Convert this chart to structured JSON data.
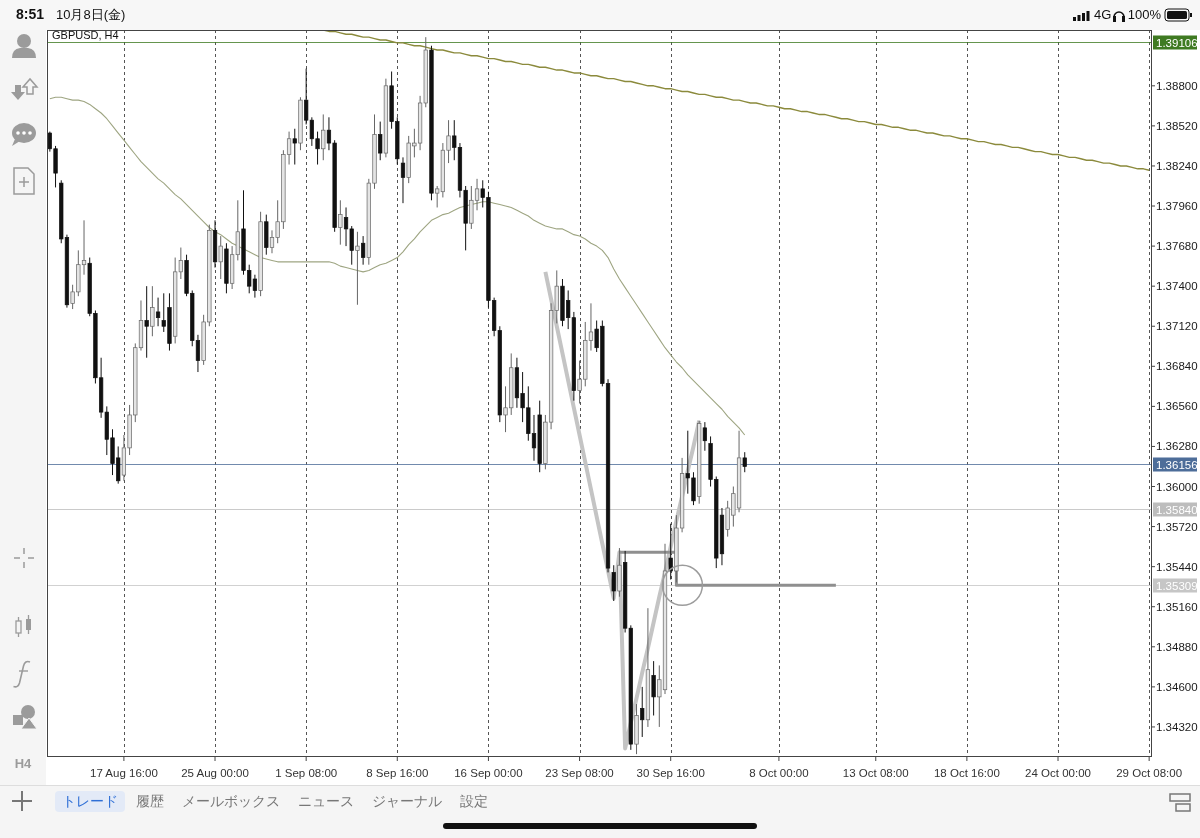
{
  "chart_data": {
    "type": "candlestick",
    "title": "GBPUSD, H4",
    "categories": [
      null,
      null,
      null,
      null,
      null,
      null,
      null,
      null,
      null,
      null,
      null,
      null,
      null,
      "17 Aug 16:00",
      null,
      null,
      null,
      null,
      null,
      null,
      null,
      null,
      null,
      null,
      null,
      null,
      null,
      null,
      null,
      "25 Aug 00:00",
      null,
      null,
      null,
      null,
      null,
      null,
      null,
      null,
      null,
      null,
      null,
      null,
      null,
      null,
      null,
      "1 Sep 08:00",
      null,
      null,
      null,
      null,
      null,
      null,
      null,
      null,
      null,
      null,
      null,
      null,
      null,
      null,
      null,
      "8 Sep 16:00",
      null,
      null,
      null,
      null,
      null,
      null,
      null,
      null,
      null,
      null,
      null,
      null,
      null,
      null,
      null,
      "16 Sep 00:00",
      null,
      null,
      null,
      null,
      null,
      null,
      null,
      null,
      null,
      null,
      null,
      null,
      null,
      null,
      null,
      "23 Sep 08:00",
      null,
      null,
      null,
      null,
      null,
      null,
      null,
      null,
      null,
      null,
      null,
      null,
      null,
      null,
      null,
      "30 Sep 16:00",
      null,
      null,
      null,
      null,
      null,
      null,
      null,
      null,
      null,
      null,
      null,
      null,
      null,
      null,
      null,
      null,
      null,
      null,
      "8 Oct 00:00",
      null,
      null,
      null,
      null,
      null,
      null,
      null,
      null,
      null,
      null,
      null,
      null,
      null,
      null,
      null,
      null,
      "13 Oct 08:00",
      null,
      null,
      null,
      null,
      null,
      null,
      null,
      null,
      null,
      null,
      null,
      null,
      null,
      null,
      null,
      "18 Oct 16:00",
      null,
      null,
      null,
      null,
      null,
      null,
      null,
      null,
      null,
      null,
      null,
      null,
      null,
      null,
      null,
      "24 Oct 00:00",
      null,
      null,
      null,
      null,
      null,
      null,
      null,
      null,
      null,
      null,
      null,
      null,
      null,
      null,
      null,
      "29 Oct 08:00"
    ],
    "ohlc": [
      [
        1.3847,
        1.3848,
        1.3834,
        1.3836
      ],
      [
        1.3836,
        1.3838,
        1.3809,
        1.3819
      ],
      [
        1.3812,
        1.3814,
        1.377,
        1.3773
      ],
      [
        1.3774,
        1.3776,
        1.3725,
        1.3727
      ],
      [
        1.3728,
        1.3741,
        1.3724,
        1.3736
      ],
      [
        1.3736,
        1.3765,
        1.3733,
        1.3755
      ],
      [
        1.3755,
        1.3786,
        1.3748,
        1.3758
      ],
      [
        1.3756,
        1.376,
        1.3719,
        1.3721
      ],
      [
        1.3721,
        1.3723,
        1.3672,
        1.3676
      ],
      [
        1.3676,
        1.369,
        1.3648,
        1.3652
      ],
      [
        1.3652,
        1.3656,
        1.3622,
        1.3633
      ],
      [
        1.3634,
        1.364,
        1.3608,
        1.3616
      ],
      [
        1.362,
        1.3628,
        1.3602,
        1.3604
      ],
      [
        1.3608,
        1.3636,
        1.3604,
        1.3627
      ],
      [
        1.3627,
        1.3657,
        1.3622,
        1.365
      ],
      [
        1.365,
        1.37,
        1.3645,
        1.3697
      ],
      [
        1.3697,
        1.373,
        1.3695,
        1.3716
      ],
      [
        1.3716,
        1.374,
        1.369,
        1.3712
      ],
      [
        1.3712,
        1.374,
        1.3705,
        1.3725
      ],
      [
        1.3722,
        1.3732,
        1.3712,
        1.3718
      ],
      [
        1.3716,
        1.3735,
        1.3708,
        1.3712
      ],
      [
        1.3725,
        1.3735,
        1.3695,
        1.37
      ],
      [
        1.3705,
        1.376,
        1.37,
        1.375
      ],
      [
        1.375,
        1.3767,
        1.3745,
        1.3758
      ],
      [
        1.3758,
        1.3762,
        1.3733,
        1.3735
      ],
      [
        1.3735,
        1.3737,
        1.3698,
        1.3702
      ],
      [
        1.3702,
        1.3706,
        1.368,
        1.3688
      ],
      [
        1.3688,
        1.372,
        1.3685,
        1.3715
      ],
      [
        1.3715,
        1.3783,
        1.3712,
        1.3779
      ],
      [
        1.3779,
        1.3786,
        1.3753,
        1.3757
      ],
      [
        1.3757,
        1.3775,
        1.3745,
        1.3768
      ],
      [
        1.3766,
        1.377,
        1.3735,
        1.3742
      ],
      [
        1.3742,
        1.3768,
        1.3738,
        1.3762
      ],
      [
        1.3762,
        1.38,
        1.3758,
        1.3778
      ],
      [
        1.378,
        1.3807,
        1.3748,
        1.3751
      ],
      [
        1.3751,
        1.3755,
        1.3735,
        1.374
      ],
      [
        1.3745,
        1.3748,
        1.3732,
        1.3737
      ],
      [
        1.3737,
        1.3792,
        1.3733,
        1.3785
      ],
      [
        1.3785,
        1.379,
        1.3762,
        1.3767
      ],
      [
        1.3767,
        1.3779,
        1.3763,
        1.3774
      ],
      [
        1.3774,
        1.38,
        1.377,
        1.3785
      ],
      [
        1.3785,
        1.3835,
        1.378,
        1.3832
      ],
      [
        1.3832,
        1.3848,
        1.3825,
        1.3843
      ],
      [
        1.3843,
        1.385,
        1.3825,
        1.384
      ],
      [
        1.384,
        1.3872,
        1.3835,
        1.387
      ],
      [
        1.387,
        1.3892,
        1.3853,
        1.3856
      ],
      [
        1.3856,
        1.3858,
        1.3838,
        1.3843
      ],
      [
        1.3843,
        1.3848,
        1.3825,
        1.3836
      ],
      [
        1.3836,
        1.386,
        1.3828,
        1.3849
      ],
      [
        1.3849,
        1.3858,
        1.3835,
        1.384
      ],
      [
        1.384,
        1.3842,
        1.3778,
        1.3781
      ],
      [
        1.3781,
        1.38,
        1.3769,
        1.379
      ],
      [
        1.3788,
        1.3795,
        1.3768,
        1.378
      ],
      [
        1.378,
        1.3782,
        1.3755,
        1.3765
      ],
      [
        1.3765,
        1.3778,
        1.3727,
        1.3768
      ],
      [
        1.377,
        1.3775,
        1.3755,
        1.376
      ],
      [
        1.376,
        1.3815,
        1.3755,
        1.3812
      ],
      [
        1.3812,
        1.386,
        1.3808,
        1.3846
      ],
      [
        1.3846,
        1.3855,
        1.3828,
        1.3833
      ],
      [
        1.3833,
        1.3885,
        1.383,
        1.388
      ],
      [
        1.388,
        1.389,
        1.385,
        1.3855
      ],
      [
        1.3855,
        1.3858,
        1.3825,
        1.3829
      ],
      [
        1.3826,
        1.383,
        1.3798,
        1.3816
      ],
      [
        1.3816,
        1.3845,
        1.3812,
        1.384
      ],
      [
        1.3838,
        1.385,
        1.383,
        1.384
      ],
      [
        1.384,
        1.3873,
        1.3835,
        1.3868
      ],
      [
        1.3868,
        1.3914,
        1.3865,
        1.3905
      ],
      [
        1.3905,
        1.3908,
        1.38,
        1.3805
      ],
      [
        1.3805,
        1.381,
        1.3795,
        1.3808
      ],
      [
        1.3806,
        1.384,
        1.3802,
        1.3835
      ],
      [
        1.3835,
        1.3856,
        1.3826,
        1.3845
      ],
      [
        1.3845,
        1.3856,
        1.3828,
        1.3837
      ],
      [
        1.3837,
        1.384,
        1.3802,
        1.3807
      ],
      [
        1.3807,
        1.381,
        1.3765,
        1.3784
      ],
      [
        1.3784,
        1.381,
        1.378,
        1.38
      ],
      [
        1.38,
        1.3815,
        1.3793,
        1.3808
      ],
      [
        1.3808,
        1.3814,
        1.3795,
        1.3802
      ],
      [
        1.3802,
        1.3806,
        1.3725,
        1.373
      ],
      [
        1.373,
        1.3732,
        1.3705,
        1.3709
      ],
      [
        1.3709,
        1.3712,
        1.3645,
        1.365
      ],
      [
        1.365,
        1.367,
        1.3638,
        1.3655
      ],
      [
        1.3655,
        1.3693,
        1.365,
        1.3683
      ],
      [
        1.3683,
        1.369,
        1.3655,
        1.3662
      ],
      [
        1.3665,
        1.368,
        1.3645,
        1.3655
      ],
      [
        1.3655,
        1.367,
        1.3632,
        1.3637
      ],
      [
        1.3637,
        1.365,
        1.3618,
        1.3627
      ],
      [
        1.365,
        1.366,
        1.361,
        1.3616
      ],
      [
        1.3616,
        1.365,
        1.3612,
        1.3645
      ],
      [
        1.3645,
        1.3728,
        1.364,
        1.3723
      ],
      [
        1.3723,
        1.3751,
        1.3714,
        1.374
      ],
      [
        1.374,
        1.3745,
        1.3712,
        1.3716
      ],
      [
        1.373,
        1.3737,
        1.371,
        1.3718
      ],
      [
        1.3718,
        1.3722,
        1.366,
        1.3667
      ],
      [
        1.3667,
        1.3688,
        1.3658,
        1.3675
      ],
      [
        1.3675,
        1.3715,
        1.367,
        1.3702
      ],
      [
        1.3702,
        1.3728,
        1.3695,
        1.3708
      ],
      [
        1.371,
        1.3716,
        1.3694,
        1.3697
      ],
      [
        1.3712,
        1.3716,
        1.367,
        1.3672
      ],
      [
        1.3672,
        1.3675,
        1.354,
        1.3543
      ],
      [
        1.354,
        1.3545,
        1.352,
        1.3527
      ],
      [
        1.3527,
        1.3557,
        1.3523,
        1.3545
      ],
      [
        1.3547,
        1.3555,
        1.3498,
        1.3501
      ],
      [
        1.3501,
        1.3503,
        1.3416,
        1.342
      ],
      [
        1.342,
        1.3448,
        1.3413,
        1.344
      ],
      [
        1.3445,
        1.346,
        1.3425,
        1.3437
      ],
      [
        1.3437,
        1.3515,
        1.3432,
        1.3472
      ],
      [
        1.3468,
        1.3478,
        1.344,
        1.3453
      ],
      [
        1.3453,
        1.3475,
        1.3432,
        1.3465
      ],
      [
        1.3458,
        1.356,
        1.3455,
        1.3541
      ],
      [
        1.355,
        1.3574,
        1.3535,
        1.3541
      ],
      [
        1.3541,
        1.358,
        1.3533,
        1.3571
      ],
      [
        1.3571,
        1.362,
        1.3568,
        1.3609
      ],
      [
        1.3609,
        1.3639,
        1.3595,
        1.3606
      ],
      [
        1.3606,
        1.361,
        1.3587,
        1.359
      ],
      [
        1.3593,
        1.3646,
        1.3588,
        1.3644
      ],
      [
        1.3641,
        1.3645,
        1.3625,
        1.3632
      ],
      [
        1.363,
        1.3635,
        1.36,
        1.3605
      ],
      [
        1.3605,
        1.3607,
        1.3543,
        1.355
      ],
      [
        1.358,
        1.3585,
        1.3545,
        1.3553
      ],
      [
        1.357,
        1.359,
        1.3565,
        1.3585
      ],
      [
        1.358,
        1.36,
        1.3572,
        1.3595
      ],
      [
        1.3585,
        1.3639,
        1.3582,
        1.362
      ],
      [
        1.362,
        1.3624,
        1.361,
        1.3614
      ],
      null,
      null,
      null,
      null,
      null,
      null,
      null,
      null,
      null,
      null,
      null,
      null,
      null,
      null,
      null,
      null,
      null,
      null,
      null,
      null,
      null,
      null,
      null,
      null,
      null,
      null,
      null,
      null,
      null,
      null,
      null,
      null,
      null,
      null,
      null,
      null,
      null,
      null,
      null,
      null,
      null,
      null,
      null,
      null,
      null,
      null,
      null,
      null,
      null,
      null,
      null,
      null,
      null,
      null,
      null,
      null,
      null,
      null,
      null,
      null,
      null,
      null,
      null,
      null,
      null,
      null,
      null,
      null,
      null,
      null,
      null
    ],
    "ylim": [
      1.3411,
      1.3919
    ],
    "yticks": [
      {
        "value": 1.3432,
        "label": "1.34320"
      },
      {
        "value": 1.346,
        "label": "1.34600"
      },
      {
        "value": 1.3488,
        "label": "1.34880"
      },
      {
        "value": 1.3516,
        "label": "1.35160"
      },
      {
        "value": 1.3544,
        "label": "1.35440"
      },
      {
        "value": 1.3572,
        "label": "1.35720"
      },
      {
        "value": 1.36,
        "label": "1.36000"
      },
      {
        "value": 1.3628,
        "label": "1.36280"
      },
      {
        "value": 1.3656,
        "label": "1.36560"
      },
      {
        "value": 1.3684,
        "label": "1.36840"
      },
      {
        "value": 1.3712,
        "label": "1.37120"
      },
      {
        "value": 1.374,
        "label": "1.37400"
      },
      {
        "value": 1.3768,
        "label": "1.37680"
      },
      {
        "value": 1.3796,
        "label": "1.37960"
      },
      {
        "value": 1.3824,
        "label": "1.38240"
      },
      {
        "value": 1.3852,
        "label": "1.38520"
      },
      {
        "value": 1.388,
        "label": "1.38800"
      }
    ],
    "grid": "x",
    "series": [
      {
        "type": "line",
        "color": "#9ea582",
        "values": [
          1.3871,
          1.3872,
          1.3872,
          1.3871,
          1.387,
          1.387,
          1.3869,
          1.3867,
          1.3864,
          1.3861,
          1.3857,
          1.3852,
          1.3847,
          1.3842,
          1.3837,
          1.3832,
          1.3827,
          1.3823,
          1.3819,
          1.3815,
          1.3812,
          1.3808,
          1.3804,
          1.3801,
          1.3797,
          1.3793,
          1.3789,
          1.3785,
          1.3781,
          1.3778,
          1.3776,
          1.3773,
          1.377,
          1.3768,
          1.3766,
          1.3764,
          1.3762,
          1.376,
          1.3759,
          1.3758,
          1.3757,
          1.3757,
          1.3757,
          1.3757,
          1.3757,
          1.3757,
          1.3757,
          1.3757,
          1.3757,
          1.3757,
          1.3756,
          1.3754,
          1.3753,
          1.3752,
          1.3751,
          1.375,
          1.3751,
          1.3753,
          1.3755,
          1.3756,
          1.3758,
          1.376,
          1.3764,
          1.3769,
          1.3773,
          1.3778,
          1.3782,
          1.3786,
          1.3788,
          1.379,
          1.3791,
          1.3793,
          1.3795,
          1.3796,
          1.3797,
          1.3798,
          1.3799,
          1.3799,
          1.3798,
          1.3797,
          1.3796,
          1.3795,
          1.3793,
          1.3791,
          1.3789,
          1.3786,
          1.3784,
          1.3782,
          1.3781,
          1.378,
          1.378,
          1.3778,
          1.3776,
          1.3775,
          1.3773,
          1.377,
          1.3768,
          1.3765,
          1.376,
          1.3752,
          1.3745,
          1.3739,
          1.3733,
          1.3727,
          1.3721,
          1.3715,
          1.3709,
          1.3703,
          1.3697,
          1.3692,
          1.3687,
          1.3683,
          1.3678,
          1.3674,
          1.367,
          1.3666,
          1.3662,
          1.3658,
          1.3654,
          1.3649,
          1.3645,
          1.3641,
          1.3636,
          null,
          null,
          null,
          null,
          null,
          null,
          null,
          null,
          null,
          null,
          null,
          null,
          null,
          null,
          null,
          null,
          null,
          null,
          null,
          null,
          null,
          null,
          null,
          null,
          null,
          null,
          null,
          null,
          null,
          null,
          null,
          null,
          null,
          null,
          null,
          null,
          null,
          null,
          null,
          null,
          null,
          null,
          null,
          null,
          null,
          null,
          null,
          null,
          null,
          null,
          null,
          null,
          null,
          null,
          null,
          null,
          null,
          null,
          null,
          null,
          null,
          null,
          null,
          null,
          null,
          null,
          null,
          null,
          null,
          null,
          null
        ]
      },
      {
        "type": "line",
        "color": "#8b8a3c",
        "values": [
          null,
          null,
          null,
          null,
          null,
          null,
          null,
          null,
          null,
          null,
          null,
          null,
          null,
          null,
          null,
          null,
          null,
          null,
          null,
          null,
          null,
          null,
          null,
          null,
          null,
          null,
          null,
          null,
          null,
          null,
          null,
          null,
          null,
          null,
          null,
          null,
          null,
          null,
          null,
          null,
          null,
          null,
          null,
          null,
          null,
          null,
          null,
          null,
          1.3919,
          1.3918,
          1.3918,
          1.3917,
          1.3916,
          1.3916,
          1.3915,
          1.3914,
          1.3914,
          1.3913,
          1.3912,
          1.3912,
          1.3911,
          1.391,
          1.391,
          1.3909,
          1.3908,
          1.3908,
          1.3907,
          1.3906,
          1.3905,
          1.3905,
          1.3904,
          1.3903,
          1.3903,
          1.3902,
          1.3901,
          1.3901,
          1.39,
          1.3899,
          1.3899,
          1.3898,
          1.3897,
          1.3897,
          1.3896,
          1.3895,
          1.3895,
          1.3894,
          1.3893,
          1.3893,
          1.3892,
          1.3891,
          1.3891,
          1.389,
          1.3889,
          1.3889,
          1.3888,
          1.3887,
          1.3887,
          1.3886,
          1.3885,
          1.3885,
          1.3884,
          1.3883,
          1.3883,
          1.3882,
          1.3881,
          1.388,
          1.388,
          1.3879,
          1.3878,
          1.3878,
          1.3877,
          1.3876,
          1.3876,
          1.3875,
          1.3874,
          1.3874,
          1.3873,
          1.3872,
          1.3872,
          1.3871,
          1.387,
          1.387,
          1.3869,
          1.3868,
          1.3868,
          1.3867,
          1.3866,
          1.3866,
          1.3865,
          1.3864,
          1.3864,
          1.3863,
          1.3862,
          1.3862,
          1.3861,
          1.386,
          1.386,
          1.3859,
          1.3858,
          1.3857,
          1.3857,
          1.3856,
          1.3855,
          1.3855,
          1.3854,
          1.3853,
          1.3853,
          1.3852,
          1.3851,
          1.3851,
          1.385,
          1.3849,
          1.3849,
          1.3848,
          1.3847,
          1.3847,
          1.3846,
          1.3845,
          1.3845,
          1.3844,
          1.3843,
          1.3843,
          1.3842,
          1.3841,
          1.3841,
          1.384,
          1.3839,
          1.3839,
          1.3838,
          1.3837,
          1.3837,
          1.3836,
          1.3835,
          1.3834,
          1.3834,
          1.3833,
          1.3832,
          1.3832,
          1.3831,
          1.383,
          1.383,
          1.3829,
          1.3828,
          1.3828,
          1.3827,
          1.3826,
          1.3826,
          1.3825,
          1.3824,
          1.3824,
          1.3823,
          1.3822,
          1.3822,
          1.3821
        ]
      },
      {
        "type": "line",
        "color": "#c4c4c4",
        "values": [
          null,
          null,
          null,
          null,
          null,
          null,
          null,
          null,
          null,
          null,
          null,
          null,
          null,
          null,
          null,
          null,
          null,
          null,
          null,
          null,
          null,
          null,
          null,
          null,
          null,
          null,
          null,
          null,
          null,
          null,
          null,
          null,
          null,
          null,
          null,
          null,
          null,
          null,
          null,
          null,
          null,
          null,
          null,
          null,
          null,
          null,
          null,
          null,
          null,
          null,
          null,
          null,
          null,
          null,
          null,
          null,
          null,
          null,
          null,
          null,
          null,
          null,
          null,
          null,
          null,
          null,
          null,
          null,
          null,
          null,
          null,
          null,
          null,
          null,
          null,
          null,
          null,
          null,
          null,
          null,
          null,
          null,
          null,
          null,
          null,
          null,
          null,
          1.375,
          1.3731,
          1.3712,
          1.3693,
          1.3674,
          1.3655,
          1.3636,
          1.3617,
          1.3598,
          1.3579,
          1.356,
          1.3541,
          1.3522,
          1.3554,
          1.3417,
          1.3435,
          1.3452,
          1.347,
          1.3487,
          1.3505,
          1.3523,
          1.354,
          1.3558,
          1.3576,
          1.3593,
          1.3611,
          1.3628,
          1.3646,
          null,
          null,
          null,
          null,
          null,
          null,
          null,
          null,
          null,
          null,
          null,
          null,
          null,
          null,
          null,
          null,
          null,
          null,
          null,
          null,
          null,
          null,
          null,
          null,
          null,
          null,
          null,
          null,
          null,
          null,
          null,
          null,
          null,
          null,
          null,
          null,
          null,
          null,
          null,
          null,
          null,
          null,
          null,
          null,
          null,
          null,
          null,
          null,
          null,
          null,
          null,
          null,
          null,
          null,
          null,
          null,
          null,
          null,
          null,
          null,
          null,
          null,
          null,
          null,
          null,
          null,
          null,
          null,
          null,
          null,
          null,
          null,
          null,
          null,
          null,
          null,
          null,
          null,
          null
        ]
      },
      {
        "type": "step",
        "color": "#8f8f8f",
        "values": [
          null,
          null,
          null,
          null,
          null,
          null,
          null,
          null,
          null,
          null,
          null,
          null,
          null,
          null,
          null,
          null,
          null,
          null,
          null,
          null,
          null,
          null,
          null,
          null,
          null,
          null,
          null,
          null,
          null,
          null,
          null,
          null,
          null,
          null,
          null,
          null,
          null,
          null,
          null,
          null,
          null,
          null,
          null,
          null,
          null,
          null,
          null,
          null,
          null,
          null,
          null,
          null,
          null,
          null,
          null,
          null,
          null,
          null,
          null,
          null,
          null,
          null,
          null,
          null,
          null,
          null,
          null,
          null,
          null,
          null,
          null,
          null,
          null,
          null,
          null,
          null,
          null,
          null,
          null,
          null,
          null,
          null,
          null,
          null,
          null,
          null,
          null,
          null,
          null,
          null,
          null,
          null,
          null,
          null,
          null,
          null,
          null,
          null,
          null,
          null,
          1.3554,
          1.3554,
          1.3554,
          1.3554,
          1.3554,
          1.3554,
          1.3554,
          1.3554,
          1.3554,
          1.3554,
          1.3531,
          1.3531,
          1.3531,
          1.3531,
          1.3531,
          1.3531,
          1.3531,
          1.3531,
          1.3531,
          1.3531,
          1.3531,
          1.3531,
          1.3531,
          1.3531,
          1.3531,
          1.3531,
          1.3531,
          1.3531,
          1.3531,
          1.3531,
          1.3531,
          1.3531,
          1.3531,
          1.3531,
          1.3531,
          1.3531,
          1.3531,
          1.3531,
          1.3531,
          null,
          null,
          null,
          null,
          null,
          null,
          null,
          null,
          null,
          null,
          null,
          null,
          null,
          null,
          null,
          null,
          null,
          null,
          null,
          null,
          null,
          null,
          null,
          null,
          null,
          null,
          null,
          null,
          null,
          null,
          null,
          null,
          null,
          null,
          null,
          null,
          null,
          null,
          null,
          null,
          null,
          null,
          null,
          null,
          null,
          null,
          null,
          null,
          null,
          null,
          null,
          null,
          null,
          null,
          null
        ]
      }
    ],
    "ref_lines": [
      {
        "axis": "y",
        "value": 1.39106,
        "label": "1.39106",
        "color": "#3f7a22"
      },
      {
        "axis": "y",
        "value": 1.36156,
        "label": "1.36156",
        "color": "#4d6d99"
      },
      {
        "axis": "y",
        "value": 1.3584,
        "label": "1.35840",
        "color": "#bdbdbd"
      },
      {
        "axis": "y",
        "value": 1.35309,
        "label": "1.35309",
        "color": "#c6c6c6"
      }
    ],
    "annotations": [
      "8:51",
      "10月8日(金)",
      "4G",
      "100%",
      "H4",
      "トレード",
      "履歴",
      "メールボックス",
      "ニュース",
      "ジャーナル",
      "設定"
    ]
  }
}
